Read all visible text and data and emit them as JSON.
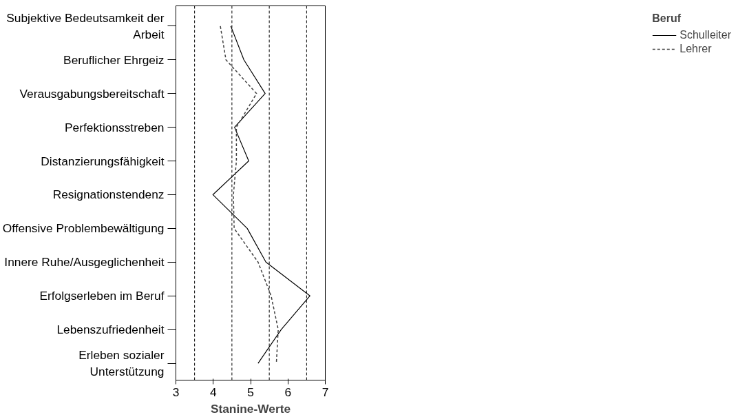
{
  "chart_data": {
    "type": "line",
    "orientation": "horizontal",
    "xlabel": "Stanine-Werte",
    "legend_title": "Beruf",
    "legend": "top right",
    "categories": [
      "Subjektive Bedeutsamkeit der Arbeit",
      "Beruflicher Ehrgeiz",
      "Verausgabungsbereitschaft",
      "Perfektionsstreben",
      "Distanzierungsfähigkeit",
      "Resignationstendenz",
      "Offensive Problembewältigung",
      "Innere Ruhe/Ausgeglichenheit",
      "Erfolgserleben im Beruf",
      "Lebenszufriedenheit",
      "Erleben sozialer Unterstützung"
    ],
    "series": [
      {
        "name": "Schulleiter",
        "color": "#000000",
        "line_style": "solid",
        "values": [
          4.47,
          4.82,
          5.39,
          4.57,
          4.95,
          3.99,
          4.91,
          5.41,
          6.59,
          5.82,
          5.2
        ]
      },
      {
        "name": "Lehrer",
        "color": "#404040",
        "line_style": "dashed",
        "values": [
          4.19,
          4.34,
          5.16,
          4.62,
          4.62,
          4.54,
          4.56,
          5.2,
          5.55,
          5.74,
          5.69
        ]
      }
    ],
    "xlim": [
      3,
      7
    ],
    "xticks": [
      3,
      4,
      5,
      6,
      7
    ],
    "grid": false,
    "ref_lines": [
      {
        "axis": "x",
        "value": 3.5,
        "line_style": "dashed",
        "color": "#000000"
      },
      {
        "axis": "x",
        "value": 4.5,
        "line_style": "dashed",
        "color": "#000000"
      },
      {
        "axis": "x",
        "value": 5.5,
        "line_style": "dashed",
        "color": "#000000"
      },
      {
        "axis": "x",
        "value": 6.5,
        "line_style": "dashed",
        "color": "#000000"
      }
    ]
  }
}
